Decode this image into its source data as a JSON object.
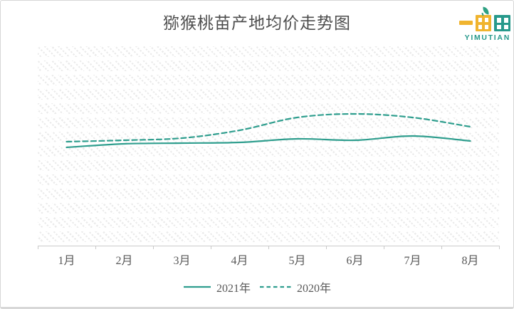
{
  "page": {
    "background": "#ffffff",
    "border_color": "#d8d8d8"
  },
  "title": {
    "text": "猕猴桃苗产地均价走势图",
    "color": "#4d4d4d"
  },
  "logo": {
    "brand_en": "YIMUTIAN",
    "mark": "yimutian-buildings-pictogram (一亩田)",
    "yellow": "#F0B42F",
    "teal": "#27998B",
    "leaf_green": "#2FA183"
  },
  "chart_data": {
    "type": "line",
    "title": "猕猴桃苗产地均价走势图",
    "categories": [
      "1月",
      "2月",
      "3月",
      "4月",
      "5月",
      "6月",
      "7月",
      "8月"
    ],
    "series": [
      {
        "name": "2021年",
        "line_style": "solid",
        "values": [
          13.8,
          14.3,
          14.4,
          14.5,
          15.0,
          14.8,
          15.4,
          14.7
        ]
      },
      {
        "name": "2020年",
        "line_style": "dashed",
        "values": [
          14.6,
          14.8,
          15.1,
          16.2,
          18.0,
          18.5,
          18.0,
          16.7
        ]
      }
    ],
    "line_color": "#2F9E8E",
    "xlabel": "",
    "ylabel": "",
    "ylim": [
      0,
      28
    ],
    "y_axis_visible": false,
    "x_axis_visible": true,
    "grid": false,
    "legend_position": "bottom",
    "plot_background": "light-diagonal-dot-hatch",
    "axis_color": "#c9c9c9",
    "label_color": "#595959"
  }
}
